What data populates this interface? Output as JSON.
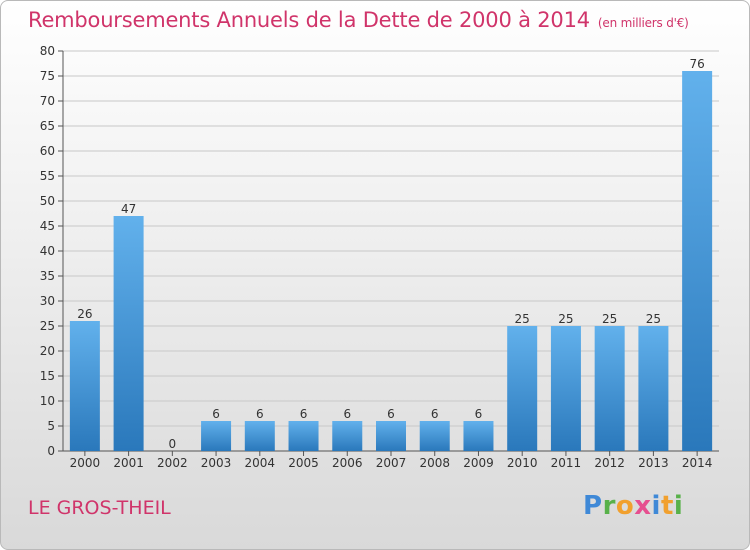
{
  "title": "Remboursements Annuels de la Dette de 2000 à 2014",
  "subtitle": "(en milliers d'€)",
  "commune": "LE GROS-THEIL",
  "logo_text": "Proxiti",
  "colors": {
    "title": "#d0346a",
    "bar_top": "#62b1ec",
    "bar_bottom": "#2a78bb",
    "grid": "#c8c8c8",
    "axis": "#555555"
  },
  "chart_data": {
    "type": "bar",
    "title": "Remboursements Annuels de la Dette de 2000 à 2014",
    "subtitle": "(en milliers d'€)",
    "categories": [
      "2000",
      "2001",
      "2002",
      "2003",
      "2004",
      "2005",
      "2006",
      "2007",
      "2008",
      "2009",
      "2010",
      "2011",
      "2012",
      "2013",
      "2014"
    ],
    "values": [
      26,
      47,
      0,
      6,
      6,
      6,
      6,
      6,
      6,
      6,
      25,
      25,
      25,
      25,
      76
    ],
    "ylim": [
      0,
      80
    ],
    "yticks": [
      0,
      5,
      10,
      15,
      20,
      25,
      30,
      35,
      40,
      45,
      50,
      55,
      60,
      65,
      70,
      75,
      80
    ],
    "grid": true,
    "xlabel": "",
    "ylabel": ""
  }
}
